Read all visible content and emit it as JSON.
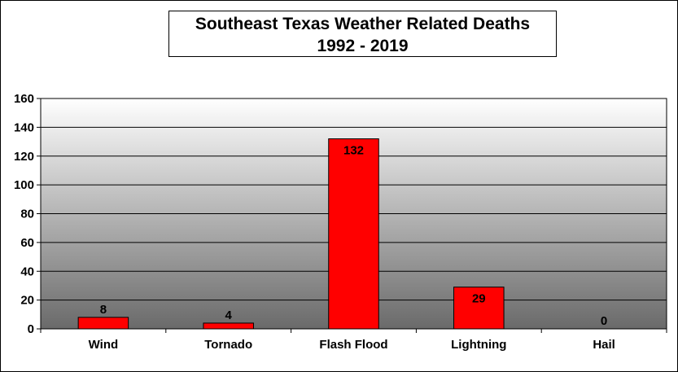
{
  "chart_data": {
    "type": "bar",
    "title": "Southeast Texas Weather Related Deaths",
    "subtitle": "1992 - 2019",
    "categories": [
      "Wind",
      "Tornado",
      "Flash Flood",
      "Lightning",
      "Hail"
    ],
    "values": [
      8,
      4,
      132,
      29,
      0
    ],
    "data_labels": [
      "8",
      "4",
      "132",
      "29",
      "0"
    ],
    "y_ticks": [
      "0",
      "20",
      "40",
      "60",
      "80",
      "100",
      "120",
      "140",
      "160"
    ],
    "ylim": [
      0,
      160
    ],
    "xlabel": "",
    "ylabel": "",
    "grid": true,
    "legend": "none",
    "colors": {
      "bar": "#ff0000",
      "bar_border": "#000000",
      "plot_bg_top": "#ffffff",
      "plot_bg_bottom": "#6a6a6a",
      "gridline": "#000000"
    }
  }
}
